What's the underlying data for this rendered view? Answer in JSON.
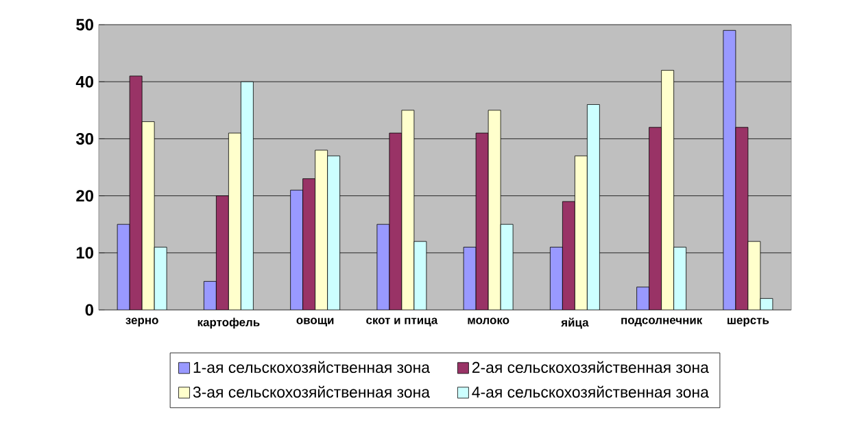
{
  "chart_data": {
    "type": "bar",
    "categories": [
      "зерно",
      "картофель",
      "овощи",
      "скот и птица",
      "молоко",
      "яйца",
      "подсолнечник",
      "шерсть"
    ],
    "series": [
      {
        "name": "1-ая сельскохозяйственная зона",
        "color": "#9999ff",
        "values": [
          15,
          5,
          21,
          15,
          11,
          11,
          4,
          49
        ]
      },
      {
        "name": "2-ая сельскохозяйственная зона",
        "color": "#993366",
        "values": [
          41,
          20,
          23,
          31,
          31,
          19,
          32,
          32
        ]
      },
      {
        "name": "3-ая сельскохозяйственная зона",
        "color": "#ffffcc",
        "values": [
          33,
          31,
          28,
          35,
          35,
          27,
          42,
          12
        ]
      },
      {
        "name": "4-ая сельскохозяйственная зона",
        "color": "#ccffff",
        "values": [
          11,
          40,
          27,
          12,
          15,
          36,
          11,
          2
        ]
      }
    ],
    "ylim": [
      0,
      50
    ],
    "yticks": [
      0,
      10,
      20,
      30,
      40,
      50
    ],
    "grid": "y",
    "legend": "bottom"
  }
}
